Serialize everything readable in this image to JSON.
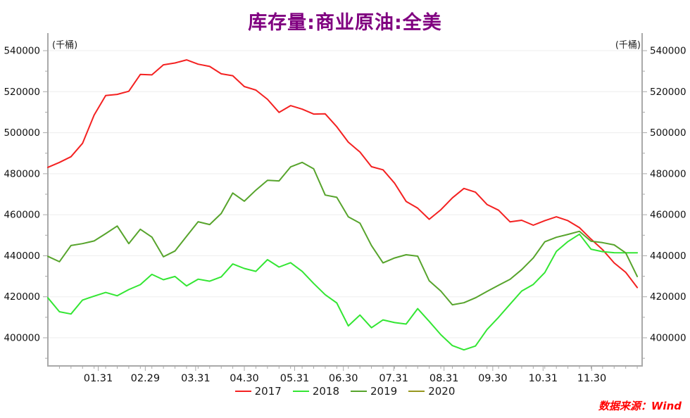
{
  "title": "库存量:商业原油:全美",
  "unit_left": "(千桶)",
  "unit_right": "(千桶)",
  "source": "数据来源：Wind",
  "colors": {
    "title": "#800080",
    "source": "#ff0000",
    "axis": "#a9a9a9",
    "gridline": "#ededed",
    "tick_label": "#111111"
  },
  "chart_data": {
    "type": "line",
    "title": "库存量:商业原油:全美",
    "ylabel": "(千桶)",
    "ylim": [
      400000,
      540000
    ],
    "yticks": [
      400000,
      420000,
      440000,
      460000,
      480000,
      500000,
      520000,
      540000
    ],
    "grid": "horizontal-light",
    "legend_position": "bottom-center",
    "xticks": [
      {
        "label": "01.31",
        "day": 31
      },
      {
        "label": "02.29",
        "day": 60
      },
      {
        "label": "03.31",
        "day": 91
      },
      {
        "label": "04.30",
        "day": 121
      },
      {
        "label": "05.31",
        "day": 152
      },
      {
        "label": "06.30",
        "day": 182
      },
      {
        "label": "07.31",
        "day": 213
      },
      {
        "label": "08.31",
        "day": 244
      },
      {
        "label": "09.30",
        "day": 274
      },
      {
        "label": "10.31",
        "day": 305
      },
      {
        "label": "11.30",
        "day": 335
      }
    ],
    "x_note": "weekly points, Jan through Dec",
    "series": [
      {
        "name": "2017",
        "color": "#f42121",
        "values": [
          483100,
          485500,
          488300,
          494800,
          508600,
          518100,
          518700,
          520200,
          528400,
          528200,
          533100,
          534000,
          535500,
          533400,
          532300,
          528700,
          527800,
          522500,
          520800,
          516300,
          509900,
          513200,
          511500,
          509100,
          509200,
          502900,
          495400,
          490600,
          483400,
          481900,
          475400,
          466500,
          463200,
          457800,
          462400,
          468200,
          472800,
          471000,
          465000,
          462200,
          456500,
          457300,
          454900,
          457100,
          459000,
          457100,
          453700,
          448100,
          443000,
          436500,
          431900,
          424500
        ]
      },
      {
        "name": "2018",
        "color": "#33e633",
        "values": [
          419500,
          412700,
          411600,
          418400,
          420300,
          422100,
          420500,
          423500,
          425900,
          430900,
          428300,
          429900,
          425300,
          428600,
          427600,
          429700,
          436000,
          433800,
          432400,
          438100,
          434500,
          436600,
          432400,
          426500,
          421000,
          417000,
          405800,
          411100,
          404900,
          408700,
          407400,
          406700,
          414200,
          408000,
          401500,
          396200,
          394100,
          396000,
          404000,
          410000,
          416400,
          422800,
          426000,
          431800,
          442100,
          446900,
          450500,
          443200,
          442000,
          441500,
          441400,
          441400
        ]
      },
      {
        "name": "2019",
        "color": "#57a42c",
        "values": [
          439700,
          437100,
          445000,
          445900,
          447200,
          450800,
          454500,
          445900,
          452900,
          449100,
          439500,
          442300,
          449500,
          456600,
          455200,
          460600,
          470600,
          466600,
          472000,
          476800,
          476500,
          483300,
          485500,
          482400,
          469600,
          468500,
          459000,
          455900,
          445000,
          436500,
          438900,
          440500,
          439800,
          427800,
          422800,
          416100,
          417100,
          419500,
          422600,
          425600,
          428500,
          433200,
          438900,
          446800,
          449000,
          450400,
          451900,
          447100,
          446400,
          445300,
          441400,
          429900
        ]
      },
      {
        "name": "2020",
        "color": "#97971f",
        "values": []
      }
    ]
  }
}
